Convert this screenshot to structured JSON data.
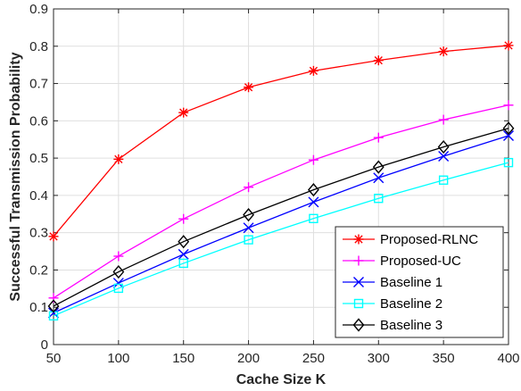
{
  "chart_data": {
    "type": "line",
    "xlabel": "Cache Size K",
    "ylabel": "Successful Transmission Probability",
    "x": [
      50,
      100,
      150,
      200,
      250,
      300,
      350,
      400
    ],
    "xlim": [
      50,
      400
    ],
    "ylim": [
      0,
      0.9
    ],
    "xticks": [
      50,
      100,
      150,
      200,
      250,
      300,
      350,
      400
    ],
    "xtick_labels": [
      "50",
      "100",
      "150",
      "200",
      "250",
      "300",
      "350",
      "400"
    ],
    "yticks": [
      0,
      0.1,
      0.2,
      0.3,
      0.4,
      0.5,
      0.6,
      0.7,
      0.8,
      0.9
    ],
    "ytick_labels": [
      "0",
      "0.1",
      "0.2",
      "0.3",
      "0.4",
      "0.5",
      "0.6",
      "0.7",
      "0.8",
      "0.9"
    ],
    "grid": true,
    "legend_position": "bottom-right",
    "series": [
      {
        "name": "Proposed-RLNC",
        "color": "#ff0000",
        "marker": "asterisk",
        "values": [
          0.29,
          0.497,
          0.622,
          0.69,
          0.734,
          0.762,
          0.786,
          0.802
        ]
      },
      {
        "name": "Proposed-UC",
        "color": "#ff00ff",
        "marker": "plus",
        "values": [
          0.125,
          0.237,
          0.337,
          0.422,
          0.495,
          0.555,
          0.603,
          0.642
        ]
      },
      {
        "name": "Baseline 1",
        "color": "#0000ff",
        "marker": "x",
        "values": [
          0.085,
          0.165,
          0.242,
          0.313,
          0.382,
          0.447,
          0.505,
          0.56
        ]
      },
      {
        "name": "Baseline 2",
        "color": "#00ffff",
        "marker": "square",
        "values": [
          0.077,
          0.151,
          0.218,
          0.281,
          0.338,
          0.392,
          0.441,
          0.488
        ]
      },
      {
        "name": "Baseline 3",
        "color": "#000000",
        "marker": "diamond",
        "values": [
          0.103,
          0.195,
          0.276,
          0.348,
          0.415,
          0.476,
          0.53,
          0.58
        ]
      }
    ]
  }
}
